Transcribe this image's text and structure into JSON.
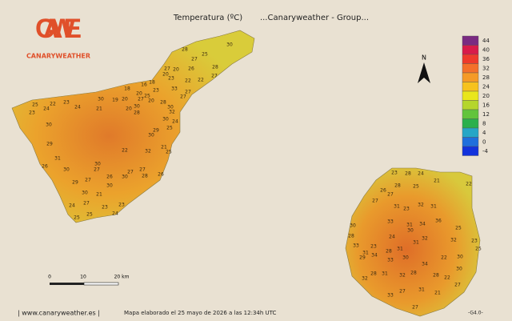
{
  "header": {
    "title": "Temperatura (ºC)",
    "subtitle": "...Canaryweather - Group..."
  },
  "logo": {
    "mark": "CAWE",
    "name": "CANARYWEATHER"
  },
  "north": "N",
  "color_scale": {
    "items": [
      {
        "value": 44,
        "color": "#7a2a82"
      },
      {
        "value": 40,
        "color": "#d81b4a"
      },
      {
        "value": 36,
        "color": "#ee3a2c"
      },
      {
        "value": 32,
        "color": "#f4702a"
      },
      {
        "value": 28,
        "color": "#f59a26"
      },
      {
        "value": 24,
        "color": "#f6c21e"
      },
      {
        "value": 20,
        "color": "#e9e61c"
      },
      {
        "value": 16,
        "color": "#b5d62c"
      },
      {
        "value": 12,
        "color": "#62c43c"
      },
      {
        "value": 8,
        "color": "#2bb04c"
      },
      {
        "value": 4,
        "color": "#26a6c6"
      },
      {
        "value": 0,
        "color": "#1f6fdc"
      },
      {
        "value": -4,
        "color": "#1232dc"
      }
    ]
  },
  "scale_bar": {
    "labels": [
      "0",
      "10",
      "20 km"
    ]
  },
  "stations": {
    "tenerife": [
      28,
      25,
      30,
      27,
      20,
      26,
      27,
      20,
      28,
      27,
      22,
      22,
      23,
      18,
      16,
      23,
      20,
      27,
      18,
      20,
      19,
      30,
      21,
      24,
      22,
      25,
      23,
      24,
      23,
      30,
      28,
      28,
      30,
      30,
      24,
      25,
      29,
      25,
      21,
      26,
      27,
      28,
      27,
      30,
      26,
      30,
      21,
      23,
      23,
      24,
      30,
      27,
      25,
      25,
      24,
      29,
      30,
      27,
      27,
      30,
      31,
      26,
      29,
      30,
      30,
      32,
      22,
      20,
      25,
      33,
      27,
      27,
      32,
      20
    ],
    "gran_canaria": [
      23,
      28,
      24,
      21,
      26,
      27,
      25,
      23,
      32,
      31,
      31,
      33,
      31,
      30,
      34,
      36,
      25,
      32,
      25,
      23,
      32,
      31,
      31,
      28,
      23,
      31,
      29,
      34,
      33,
      30,
      34,
      22,
      30,
      30,
      28,
      32,
      31,
      28,
      32,
      28,
      22,
      21,
      27,
      31,
      27,
      27,
      33,
      24,
      33,
      30,
      28,
      22,
      27,
      28
    ]
  },
  "footer": {
    "site": "| www.canaryweather.es |",
    "note": "Mapa elaborado el 25 mayo de 2026 a las 12:34h UTC",
    "version": "-G4.0-"
  }
}
